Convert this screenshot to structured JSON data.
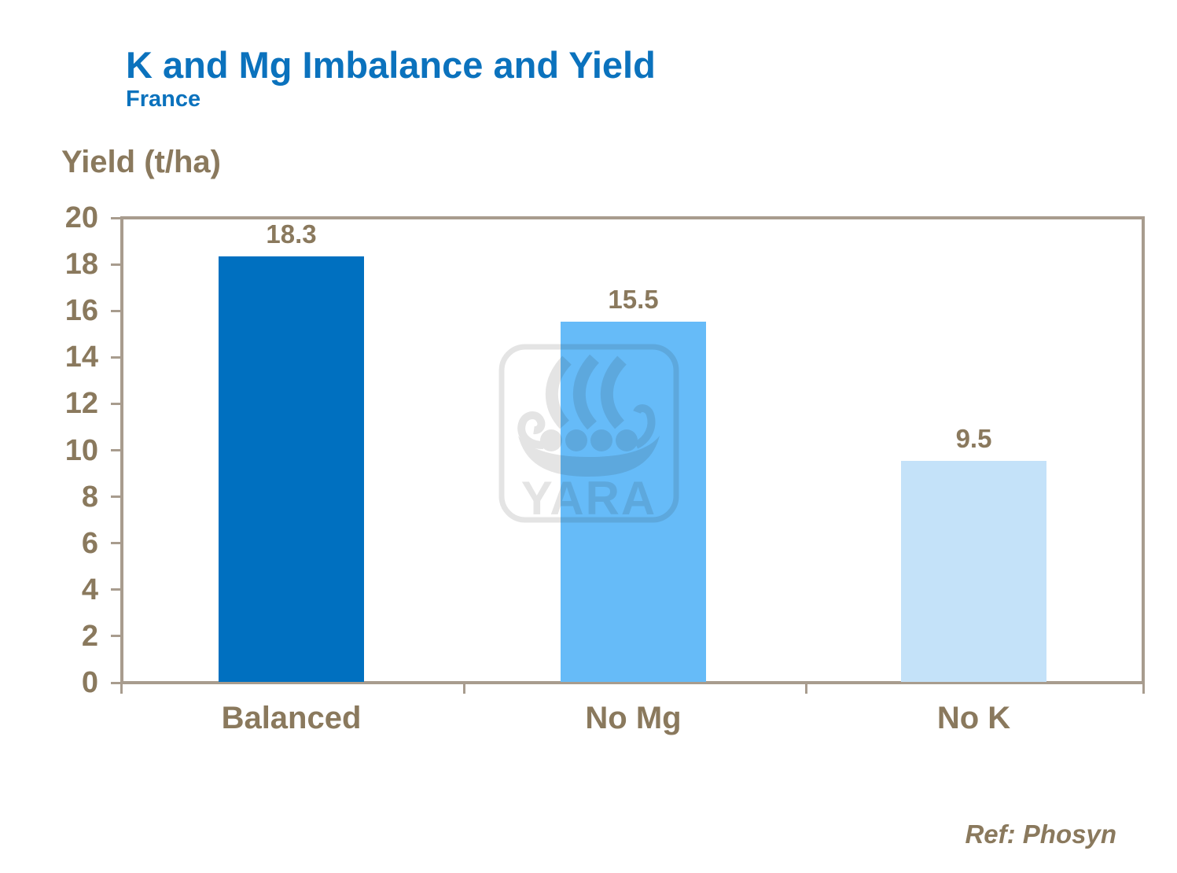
{
  "slide": {
    "title": "K and Mg Imbalance and Yield",
    "subtitle": "France",
    "axis_title": "Yield (t/ha)",
    "reference": "Ref: Phosyn",
    "watermark_text": "YARA"
  },
  "colors": {
    "title_blue": "#0B72BD",
    "text_brown": "#8A795D",
    "axis_tan": "#A89C8E",
    "bar_balanced": "#0070C0",
    "bar_no_mg": "#66BBF8",
    "bar_no_k": "#C4E2F9",
    "watermark_gray": "#E6E6E6"
  },
  "chart_data": {
    "type": "bar",
    "title": "K and Mg Imbalance and Yield",
    "subtitle": "France",
    "categories": [
      "Balanced",
      "No Mg",
      "No K"
    ],
    "values": [
      18.3,
      15.5,
      9.5
    ],
    "value_labels": [
      "18.3",
      "15.5",
      "9.5"
    ],
    "bar_colors": [
      "#0070C0",
      "#66BBF8",
      "#C4E2F9"
    ],
    "xlabel": "",
    "ylabel": "Yield (t/ha)",
    "ylim": [
      0,
      20
    ],
    "yticks": [
      20,
      18,
      16,
      14,
      12,
      10,
      8,
      6,
      4,
      2,
      0
    ],
    "grid": false,
    "legend": false,
    "annotations": [
      "Ref: Phosyn"
    ]
  }
}
